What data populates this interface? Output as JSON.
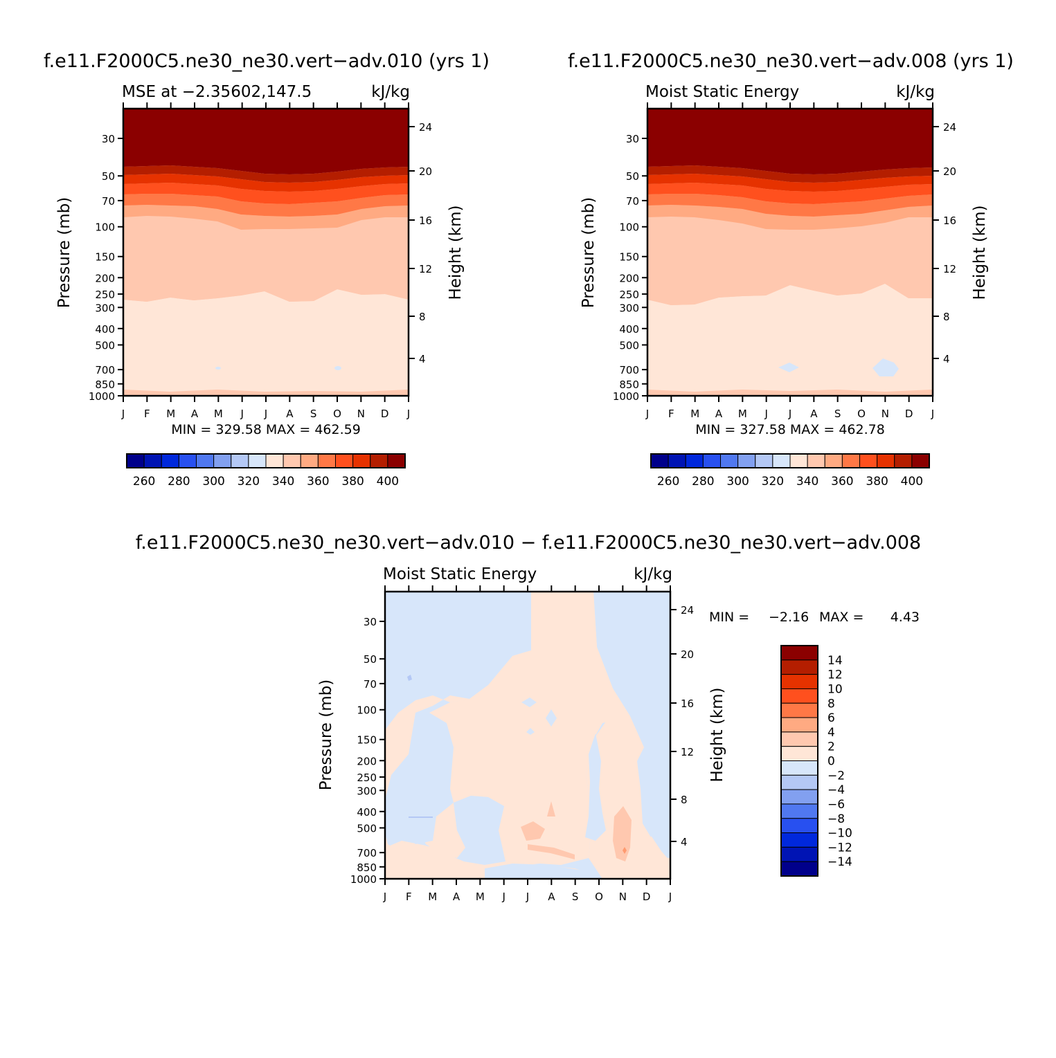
{
  "panels": [
    {
      "id": "p1",
      "case_title": "f.e11.F2000C5.ne30_ne30.vert−adv.010 (yrs 1)",
      "left_title": "MSE at −2.35602,147.5",
      "right_title": "kJ/kg",
      "ylabel": "Pressure (mb)",
      "y2label": "Height (km)",
      "stats": "MIN = 329.58 MAX = 462.59"
    },
    {
      "id": "p2",
      "case_title": "f.e11.F2000C5.ne30_ne30.vert−adv.008 (yrs 1)",
      "left_title": "Moist Static Energy",
      "right_title": "kJ/kg",
      "ylabel": "Pressure (mb)",
      "y2label": "Height (km)",
      "stats": "MIN = 327.58 MAX = 462.78"
    },
    {
      "id": "p3",
      "case_title": "f.e11.F2000C5.ne30_ne30.vert−adv.010 − f.e11.F2000C5.ne30_ne30.vert−adv.008",
      "left_title": "Moist Static Energy",
      "right_title": "kJ/kg",
      "ylabel": "Pressure (mb)",
      "y2label": "Height (km)",
      "stats_min_label": "MIN =",
      "stats_min": "−2.16",
      "stats_max_label": "MAX =",
      "stats_max": "4.43"
    }
  ],
  "chart_data": [
    {
      "type": "heatmap",
      "subtype": "filled-contour",
      "x_tick_labels": [
        "J",
        "F",
        "M",
        "A",
        "M",
        "J",
        "J",
        "A",
        "S",
        "O",
        "N",
        "D",
        "J"
      ],
      "y_tick_labels": [
        "30",
        "50",
        "70",
        "100",
        "150",
        "200",
        "250",
        "300",
        "400",
        "500",
        "700",
        "850",
        "1000"
      ],
      "y_scale": "log",
      "yrange": [
        1000,
        20
      ],
      "y2_tick_labels": [
        "24",
        "20",
        "16",
        "12",
        "8",
        "4"
      ],
      "colorbar_labels": [
        "260",
        "280",
        "300",
        "320",
        "340",
        "360",
        "380",
        "400"
      ],
      "colorbar_colors": [
        "#00008b",
        "#0014b4",
        "#0028dc",
        "#2850f0",
        "#5078f0",
        "#82a0f0",
        "#b4c8f5",
        "#d7e6fa",
        "#ffe6d7",
        "#ffc8af",
        "#ffaa82",
        "#ff7846",
        "#ff501e",
        "#e63200",
        "#b41e00",
        "#8b0000"
      ],
      "min": 329.58,
      "max": 462.59,
      "levels_layers": [
        {
          "color": "#8b0000",
          "label": ">400"
        },
        {
          "color": "#b41e00",
          "label": "390-400"
        },
        {
          "color": "#e63200",
          "label": "380-390"
        },
        {
          "color": "#ff501e",
          "label": "370-380"
        },
        {
          "color": "#ff7846",
          "label": "360-370"
        },
        {
          "color": "#ffaa82",
          "label": "350-360"
        },
        {
          "color": "#ffc8af",
          "label": "340-350"
        },
        {
          "color": "#ffe6d7",
          "label": "330-340"
        }
      ]
    },
    {
      "type": "heatmap",
      "subtype": "filled-contour",
      "x_tick_labels": [
        "J",
        "F",
        "M",
        "A",
        "M",
        "J",
        "J",
        "A",
        "S",
        "O",
        "N",
        "D",
        "J"
      ],
      "y_tick_labels": [
        "30",
        "50",
        "70",
        "100",
        "150",
        "200",
        "250",
        "300",
        "400",
        "500",
        "700",
        "850",
        "1000"
      ],
      "y_scale": "log",
      "yrange": [
        1000,
        20
      ],
      "y2_tick_labels": [
        "24",
        "20",
        "16",
        "12",
        "8",
        "4"
      ],
      "colorbar_labels": [
        "260",
        "280",
        "300",
        "320",
        "340",
        "360",
        "380",
        "400"
      ],
      "colorbar_colors": [
        "#00008b",
        "#0014b4",
        "#0028dc",
        "#2850f0",
        "#5078f0",
        "#82a0f0",
        "#b4c8f5",
        "#d7e6fa",
        "#ffe6d7",
        "#ffc8af",
        "#ffaa82",
        "#ff7846",
        "#ff501e",
        "#e63200",
        "#b41e00",
        "#8b0000"
      ],
      "min": 327.58,
      "max": 462.78
    },
    {
      "type": "heatmap",
      "subtype": "filled-contour",
      "x_tick_labels": [
        "J",
        "F",
        "M",
        "A",
        "M",
        "J",
        "J",
        "A",
        "S",
        "O",
        "N",
        "D",
        "J"
      ],
      "y_tick_labels": [
        "30",
        "50",
        "70",
        "100",
        "150",
        "200",
        "250",
        "300",
        "400",
        "500",
        "700",
        "850",
        "1000"
      ],
      "y_scale": "log",
      "yrange": [
        1000,
        20
      ],
      "y2_tick_labels": [
        "24",
        "20",
        "16",
        "12",
        "8",
        "4"
      ],
      "colorbar_labels": [
        "14",
        "12",
        "10",
        "8",
        "6",
        "4",
        "2",
        "0",
        "−2",
        "−4",
        "−6",
        "−8",
        "−10",
        "−12",
        "−14"
      ],
      "colorbar_colors": [
        "#8b0000",
        "#b41e00",
        "#e63200",
        "#ff501e",
        "#ff7846",
        "#ffaa82",
        "#ffc8af",
        "#ffe6d7",
        "#d7e6fa",
        "#b4c8f5",
        "#82a0f0",
        "#5078f0",
        "#2850f0",
        "#0028dc",
        "#0014b4",
        "#00008b"
      ],
      "min": -2.16,
      "max": 4.43
    }
  ]
}
